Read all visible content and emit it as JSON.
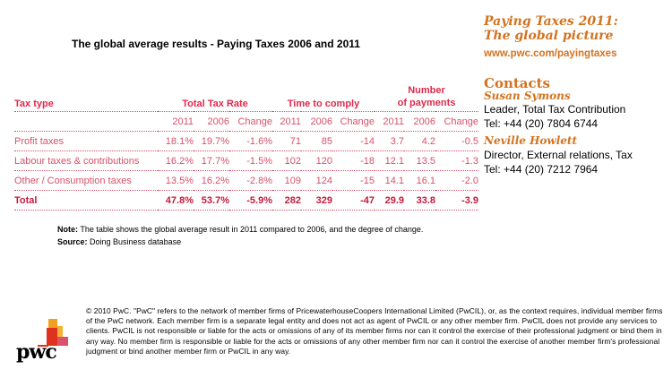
{
  "title": "The global average results - Paying Taxes 2006 and 2011",
  "table": {
    "headers": {
      "tax_type": "Tax type",
      "ttr": "Total Tax Rate",
      "time": "Time to comply",
      "payments_line1": "Number",
      "payments_line2": "of payments"
    },
    "subheaders": [
      "2011",
      "2006",
      "Change",
      "2011",
      "2006",
      "Change",
      "2011",
      "2006",
      "Change"
    ],
    "rows": [
      {
        "label": "Profit taxes",
        "values": [
          "18.1%",
          "19.7%",
          "-1.6%",
          "71",
          "85",
          "-14",
          "3.7",
          "4.2",
          "-0.5"
        ]
      },
      {
        "label": "Labour taxes & contributions",
        "values": [
          "16.2%",
          "17.7%",
          "-1.5%",
          "102",
          "120",
          "-18",
          "12.1",
          "13.5",
          "-1.3"
        ]
      },
      {
        "label": "Other / Consumption taxes",
        "values": [
          "13.5%",
          "16.2%",
          "-2.8%",
          "109",
          "124",
          "-15",
          "14.1",
          "16.1",
          "-2.0"
        ]
      },
      {
        "label": "Total",
        "values": [
          "47.8%",
          "53.7%",
          "-5.9%",
          "282",
          "329",
          "-47",
          "29.9",
          "33.8",
          "-3.9"
        ]
      }
    ]
  },
  "note": {
    "note_label": "Note:",
    "note_text": " The table shows the global average result in 2011 compared to 2006, and the degree of change.",
    "source_label": "Source:",
    "source_text": " Doing Business database"
  },
  "sidebar": {
    "title_line1": "Paying Taxes 2011:",
    "title_line2": "The global picture",
    "url": "www.pwc.com/payingtaxes",
    "contacts_heading": "Contacts",
    "contacts": [
      {
        "name": "Susan Symons",
        "role": "Leader, Total Tax Contribution",
        "tel": "Tel: +44 (20) 7804 6744"
      },
      {
        "name": "Neville Howlett",
        "role": "Director, External relations, Tax",
        "tel": "Tel: +44 (20) 7212 7964"
      }
    ]
  },
  "legal": "© 2010 PwC. \"PwC\" refers to the network of member firms of PricewaterhouseCoopers International Limited (PwCIL), or, as the context requires, individual member firms of the PwC network. Each member firm is a separate legal entity and does not act as agent of PwCIL or any other member firm. PwCIL does not provide any services to clients. PwCIL is not responsible or liable for the acts or omissions of any of its member firms nor can it control the exercise of their professional judgment or bind them in any way. No member firm is responsible or liable for the acts or omissions of any other member firm nor can it control the exercise of another member firm's professional judgment or bind another member firm or PwCIL in any way.",
  "logo": {
    "text": "pwc"
  }
}
